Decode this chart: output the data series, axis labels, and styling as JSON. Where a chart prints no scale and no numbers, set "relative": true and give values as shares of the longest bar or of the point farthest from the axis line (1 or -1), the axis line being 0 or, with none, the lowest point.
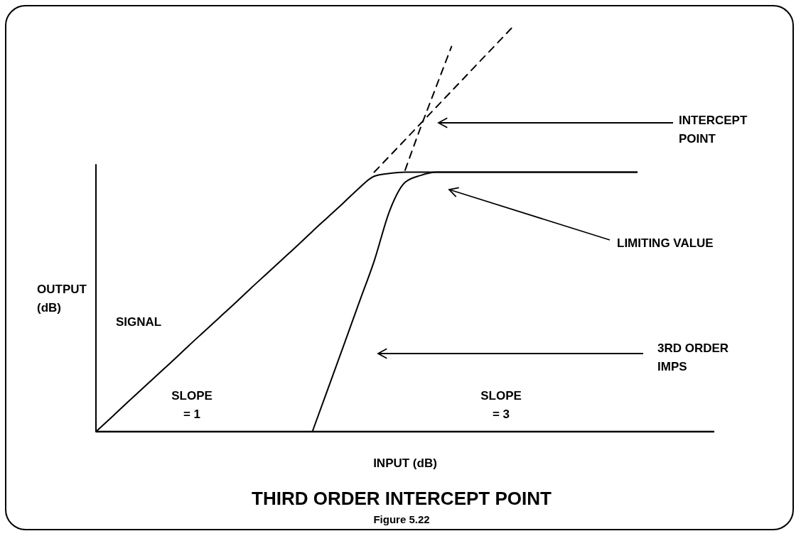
{
  "chart_data": {
    "type": "line",
    "title": "THIRD ORDER INTERCEPT POINT",
    "subtitle": "Figure 5.22",
    "xlabel": "INPUT (dB)",
    "ylabel": "OUTPUT\n(dB)",
    "relative": true,
    "categories": [
      null,
      null,
      null,
      null,
      null,
      null,
      null,
      null,
      null,
      null,
      null,
      null,
      null,
      null,
      null,
      null,
      null,
      null,
      null,
      null,
      null,
      null,
      null,
      null,
      null,
      null,
      null,
      null,
      null,
      null,
      null,
      null,
      null,
      null,
      null,
      null,
      null,
      null,
      null,
      null,
      null
    ],
    "series": [
      {
        "name": "SIGNAL",
        "color": "#000000",
        "line_style": "solid",
        "values": [
          0,
          0.035,
          0.071,
          0.106,
          0.141,
          0.176,
          0.212,
          0.247,
          0.282,
          0.317,
          0.353,
          0.388,
          0.423,
          0.458,
          0.494,
          0.529,
          0.564,
          0.6,
          0.63,
          0.637,
          0.64,
          0.64,
          0.64,
          0.64,
          0.64,
          0.64,
          0.64,
          0.64,
          0.64,
          0.64,
          0.64,
          0.64,
          0.64,
          0.64,
          0.64,
          0.64,
          null,
          null,
          null,
          null,
          null
        ]
      },
      {
        "name": "3RD ORDER\nIMPS",
        "color": "#000000",
        "line_style": "solid",
        "values": [
          null,
          null,
          null,
          null,
          null,
          null,
          null,
          null,
          null,
          null,
          null,
          null,
          null,
          null,
          0,
          0.105,
          0.21,
          0.316,
          0.421,
          0.545,
          0.615,
          0.632,
          0.64,
          0.64,
          0.64,
          0.64,
          0.64,
          0.64,
          0.64,
          0.64,
          0.64,
          0.64,
          0.64,
          0.64,
          0.64,
          0.64,
          null,
          null,
          null,
          null,
          null
        ]
      },
      {
        "color": "#000000",
        "line_style": "dashed",
        "values": [
          null,
          null,
          null,
          null,
          null,
          null,
          null,
          null,
          null,
          null,
          null,
          null,
          null,
          null,
          null,
          null,
          null,
          null,
          0.64,
          0.68,
          0.72,
          0.76,
          0.8,
          0.84,
          0.88,
          0.92,
          0.96,
          1,
          null,
          null,
          null,
          null,
          null,
          null,
          null,
          null,
          null,
          null,
          null,
          null,
          null
        ]
      },
      {
        "color": "#000000",
        "line_style": "dashed",
        "values": [
          null,
          null,
          null,
          null,
          null,
          null,
          null,
          null,
          null,
          null,
          null,
          null,
          null,
          null,
          null,
          null,
          null,
          null,
          null,
          null,
          0.645,
          0.75,
          0.85,
          0.95,
          null,
          null,
          null,
          null,
          null,
          null,
          null,
          null,
          null,
          null,
          null,
          null,
          null,
          null,
          null,
          null,
          null
        ]
      }
    ],
    "annotations": [
      "INTERCEPT\nPOINT",
      "LIMITING VALUE",
      "SLOPE\n= 1",
      "SLOPE\n= 3"
    ]
  }
}
